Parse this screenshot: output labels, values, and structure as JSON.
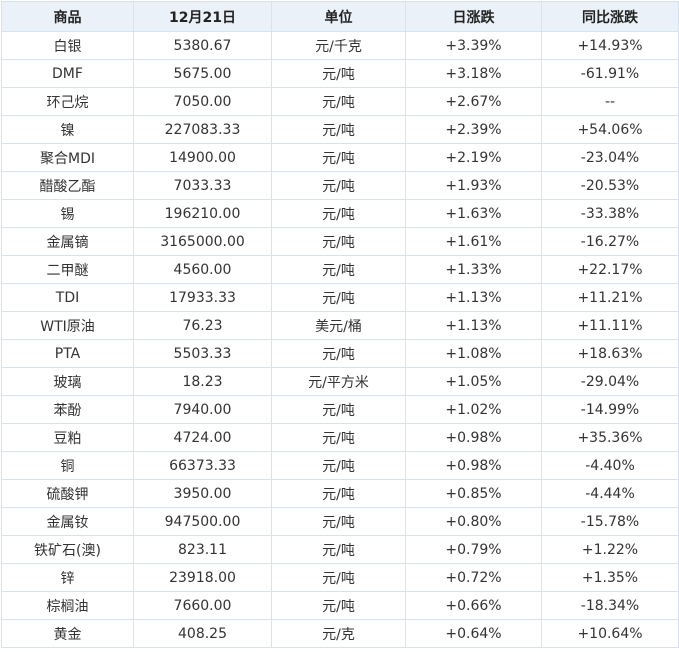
{
  "table": {
    "headers": [
      "商品",
      "12月21日",
      "单位",
      "日涨跌",
      "同比涨跌"
    ],
    "colors": {
      "up": "#e8302c",
      "down": "#1a9c2e",
      "header_bg": "#eaf1f8",
      "border": "#d6e2ee"
    },
    "rows": [
      [
        "白银",
        "5380.67",
        "元/千克",
        "+3.39%",
        "+14.93%"
      ],
      [
        "DMF",
        "5675.00",
        "元/吨",
        "+3.18%",
        "-61.91%"
      ],
      [
        "环己烷",
        "7050.00",
        "元/吨",
        "+2.67%",
        "--"
      ],
      [
        "镍",
        "227083.33",
        "元/吨",
        "+2.39%",
        "+54.06%"
      ],
      [
        "聚合MDI",
        "14900.00",
        "元/吨",
        "+2.19%",
        "-23.04%"
      ],
      [
        "醋酸乙酯",
        "7033.33",
        "元/吨",
        "+1.93%",
        "-20.53%"
      ],
      [
        "锡",
        "196210.00",
        "元/吨",
        "+1.63%",
        "-33.38%"
      ],
      [
        "金属镝",
        "3165000.00",
        "元/吨",
        "+1.61%",
        "-16.27%"
      ],
      [
        "二甲醚",
        "4560.00",
        "元/吨",
        "+1.33%",
        "+22.17%"
      ],
      [
        "TDI",
        "17933.33",
        "元/吨",
        "+1.13%",
        "+11.21%"
      ],
      [
        "WTI原油",
        "76.23",
        "美元/桶",
        "+1.13%",
        "+11.11%"
      ],
      [
        "PTA",
        "5503.33",
        "元/吨",
        "+1.08%",
        "+18.63%"
      ],
      [
        "玻璃",
        "18.23",
        "元/平方米",
        "+1.05%",
        "-29.04%"
      ],
      [
        "苯酚",
        "7940.00",
        "元/吨",
        "+1.02%",
        "-14.99%"
      ],
      [
        "豆粕",
        "4724.00",
        "元/吨",
        "+0.98%",
        "+35.36%"
      ],
      [
        "铜",
        "66373.33",
        "元/吨",
        "+0.98%",
        "-4.40%"
      ],
      [
        "硫酸钾",
        "3950.00",
        "元/吨",
        "+0.85%",
        "-4.44%"
      ],
      [
        "金属钕",
        "947500.00",
        "元/吨",
        "+0.80%",
        "-15.78%"
      ],
      [
        "铁矿石(澳)",
        "823.11",
        "元/吨",
        "+0.79%",
        "+1.22%"
      ],
      [
        "锌",
        "23918.00",
        "元/吨",
        "+0.72%",
        "+1.35%"
      ],
      [
        "棕榈油",
        "7660.00",
        "元/吨",
        "+0.66%",
        "-18.34%"
      ],
      [
        "黄金",
        "408.25",
        "元/克",
        "+0.64%",
        "+10.64%"
      ]
    ]
  }
}
